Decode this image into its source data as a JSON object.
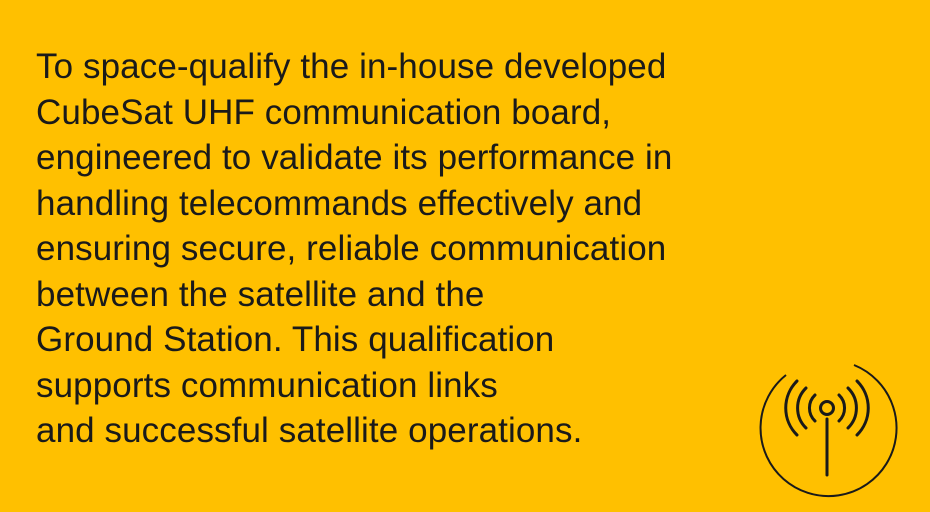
{
  "card": {
    "background_color": "#FFC000",
    "text_color": "#1a1a1a",
    "description_lines": [
      "To space-qualify the in-house developed",
      "CubeSat UHF communication board,",
      "engineered to validate its performance in",
      "handling telecommands effectively and",
      "ensuring secure, reliable communication",
      "between the satellite and the",
      "Ground Station. This qualification",
      "supports communication links",
      "and successful satellite operations."
    ],
    "icon": "antenna-signal-icon"
  }
}
